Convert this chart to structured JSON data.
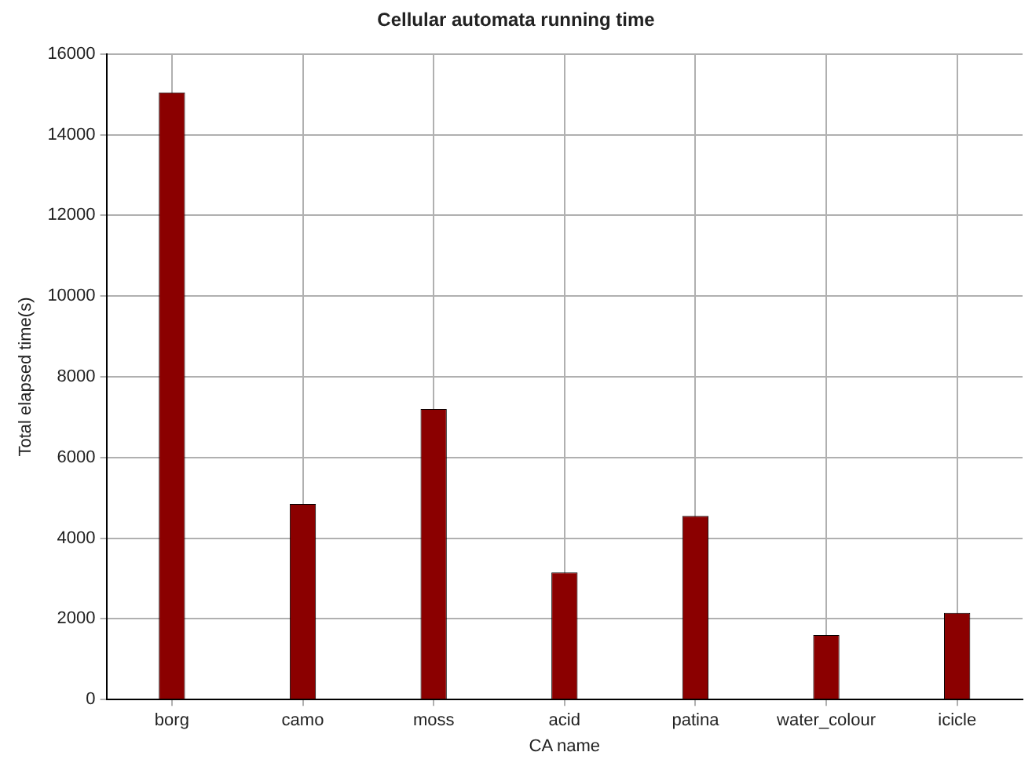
{
  "chart_data": {
    "type": "bar",
    "title": "Cellular automata running time",
    "xlabel": "CA name",
    "ylabel": "Total elapsed time(s)",
    "categories": [
      "borg",
      "camo",
      "moss",
      "acid",
      "patina",
      "water_colour",
      "icicle"
    ],
    "series": [
      {
        "color": "#8b0000",
        "values": [
          15050,
          4850,
          7200,
          3150,
          4550,
          1600,
          2150
        ]
      }
    ],
    "ylim": [
      0,
      16000
    ],
    "yticks": [
      0,
      2000,
      4000,
      6000,
      8000,
      10000,
      12000,
      14000,
      16000
    ],
    "grid": true
  }
}
